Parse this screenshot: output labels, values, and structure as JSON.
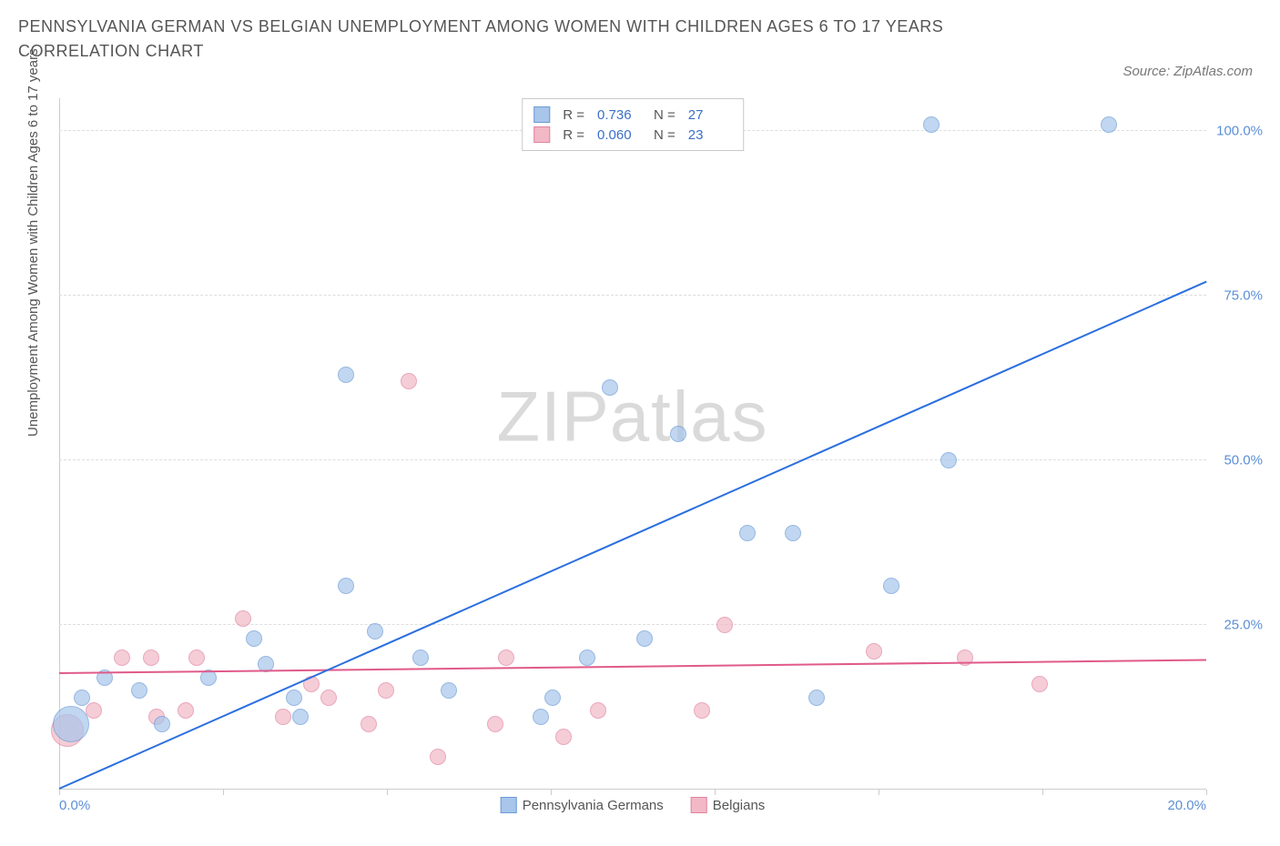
{
  "title": "PENNSYLVANIA GERMAN VS BELGIAN UNEMPLOYMENT AMONG WOMEN WITH CHILDREN AGES 6 TO 17 YEARS CORRELATION CHART",
  "source": "Source: ZipAtlas.com",
  "ylabel": "Unemployment Among Women with Children Ages 6 to 17 years",
  "watermark_bold": "ZIP",
  "watermark_thin": "atlas",
  "chart": {
    "type": "scatter",
    "xlim": [
      0,
      20
    ],
    "ylim": [
      0,
      105
    ],
    "yticks": [
      25,
      50,
      75,
      100
    ],
    "ytick_labels": [
      "25.0%",
      "50.0%",
      "75.0%",
      "100.0%"
    ],
    "xticks": [
      0,
      2.86,
      5.71,
      8.57,
      11.43,
      14.29,
      17.14,
      20
    ],
    "xtick_labels": {
      "0": "0.0%",
      "20": "20.0%"
    },
    "background_color": "#ffffff",
    "grid_color": "#dddddd",
    "axis_color": "#cccccc",
    "title_color": "#555555",
    "label_color": "#555555",
    "tick_color": "#5b8fd6",
    "title_fontsize": 18,
    "label_fontsize": 15,
    "tick_fontsize": 15
  },
  "series": {
    "pa_german": {
      "label": "Pennsylvania Germans",
      "fill_color": "#a8c5ea",
      "stroke_color": "#6b9bd6",
      "opacity": 0.7,
      "marker_radius": 9,
      "R": "0.736",
      "N": "27",
      "trend": {
        "x1": 0,
        "y1": 0,
        "x2": 20,
        "y2": 77,
        "color": "#2b6fe0",
        "width": 2
      },
      "points": [
        {
          "x": 0.2,
          "y": 10,
          "r": 20
        },
        {
          "x": 0.4,
          "y": 14
        },
        {
          "x": 0.8,
          "y": 17
        },
        {
          "x": 1.4,
          "y": 15
        },
        {
          "x": 1.8,
          "y": 10
        },
        {
          "x": 2.6,
          "y": 17
        },
        {
          "x": 3.4,
          "y": 23
        },
        {
          "x": 3.6,
          "y": 19
        },
        {
          "x": 4.1,
          "y": 14
        },
        {
          "x": 4.2,
          "y": 11
        },
        {
          "x": 5.0,
          "y": 31
        },
        {
          "x": 5.0,
          "y": 63
        },
        {
          "x": 5.5,
          "y": 24
        },
        {
          "x": 6.3,
          "y": 20
        },
        {
          "x": 6.8,
          "y": 15
        },
        {
          "x": 8.4,
          "y": 11
        },
        {
          "x": 8.6,
          "y": 14
        },
        {
          "x": 9.2,
          "y": 20
        },
        {
          "x": 9.6,
          "y": 61
        },
        {
          "x": 10.2,
          "y": 23
        },
        {
          "x": 10.8,
          "y": 54
        },
        {
          "x": 12.0,
          "y": 39
        },
        {
          "x": 12.8,
          "y": 39
        },
        {
          "x": 13.2,
          "y": 14
        },
        {
          "x": 14.5,
          "y": 31
        },
        {
          "x": 15.2,
          "y": 101
        },
        {
          "x": 15.5,
          "y": 50
        },
        {
          "x": 18.3,
          "y": 101
        }
      ]
    },
    "belgian": {
      "label": "Belgians",
      "fill_color": "#f2b8c6",
      "stroke_color": "#e084a0",
      "opacity": 0.7,
      "marker_radius": 9,
      "R": "0.060",
      "N": "23",
      "trend": {
        "x1": 0,
        "y1": 17.5,
        "x2": 20,
        "y2": 19.5,
        "color": "#e05a8a",
        "width": 2
      },
      "points": [
        {
          "x": 0.15,
          "y": 9,
          "r": 18
        },
        {
          "x": 0.6,
          "y": 12
        },
        {
          "x": 1.1,
          "y": 20
        },
        {
          "x": 1.6,
          "y": 20
        },
        {
          "x": 1.7,
          "y": 11
        },
        {
          "x": 2.2,
          "y": 12
        },
        {
          "x": 2.4,
          "y": 20
        },
        {
          "x": 3.2,
          "y": 26
        },
        {
          "x": 3.9,
          "y": 11
        },
        {
          "x": 4.4,
          "y": 16
        },
        {
          "x": 4.7,
          "y": 14
        },
        {
          "x": 5.4,
          "y": 10
        },
        {
          "x": 5.7,
          "y": 15
        },
        {
          "x": 6.1,
          "y": 62
        },
        {
          "x": 6.6,
          "y": 5
        },
        {
          "x": 7.6,
          "y": 10
        },
        {
          "x": 7.8,
          "y": 20
        },
        {
          "x": 8.8,
          "y": 8
        },
        {
          "x": 9.4,
          "y": 12
        },
        {
          "x": 11.2,
          "y": 12
        },
        {
          "x": 11.6,
          "y": 25
        },
        {
          "x": 14.2,
          "y": 21
        },
        {
          "x": 15.8,
          "y": 20
        },
        {
          "x": 17.1,
          "y": 16
        }
      ]
    }
  },
  "legend_top": {
    "R_label": "R =",
    "N_label": "N ="
  }
}
